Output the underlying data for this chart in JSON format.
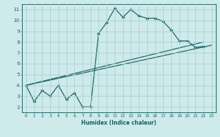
{
  "xlabel": "Humidex (Indice chaleur)",
  "bg_color": "#ceeaea",
  "grid_color": "#aad0d0",
  "line_color": "#1a6060",
  "xlim": [
    -0.5,
    23.5
  ],
  "ylim": [
    1.5,
    11.5
  ],
  "xticks": [
    0,
    1,
    2,
    3,
    4,
    5,
    6,
    7,
    8,
    9,
    10,
    11,
    12,
    13,
    14,
    15,
    16,
    17,
    18,
    19,
    20,
    21,
    22,
    23
  ],
  "yticks": [
    2,
    3,
    4,
    5,
    6,
    7,
    8,
    9,
    10,
    11
  ],
  "series1_x": [
    0,
    1,
    2,
    3,
    4,
    5,
    6,
    7,
    8,
    9,
    10,
    11,
    12,
    13,
    14,
    15,
    16,
    17,
    18,
    19,
    20,
    21,
    22
  ],
  "series1_y": [
    4.0,
    2.5,
    3.5,
    3.0,
    4.0,
    2.7,
    3.3,
    2.0,
    2.0,
    8.8,
    9.8,
    11.1,
    10.3,
    11.0,
    10.4,
    10.2,
    10.2,
    9.9,
    9.1,
    8.1,
    8.1,
    7.5,
    7.6
  ],
  "series2_x": [
    0,
    22
  ],
  "series2_y": [
    4.0,
    8.0
  ],
  "series3_x": [
    0,
    23
  ],
  "series3_y": [
    4.0,
    7.7
  ],
  "marker": "D",
  "markersize": 2.0,
  "linewidth": 0.9
}
